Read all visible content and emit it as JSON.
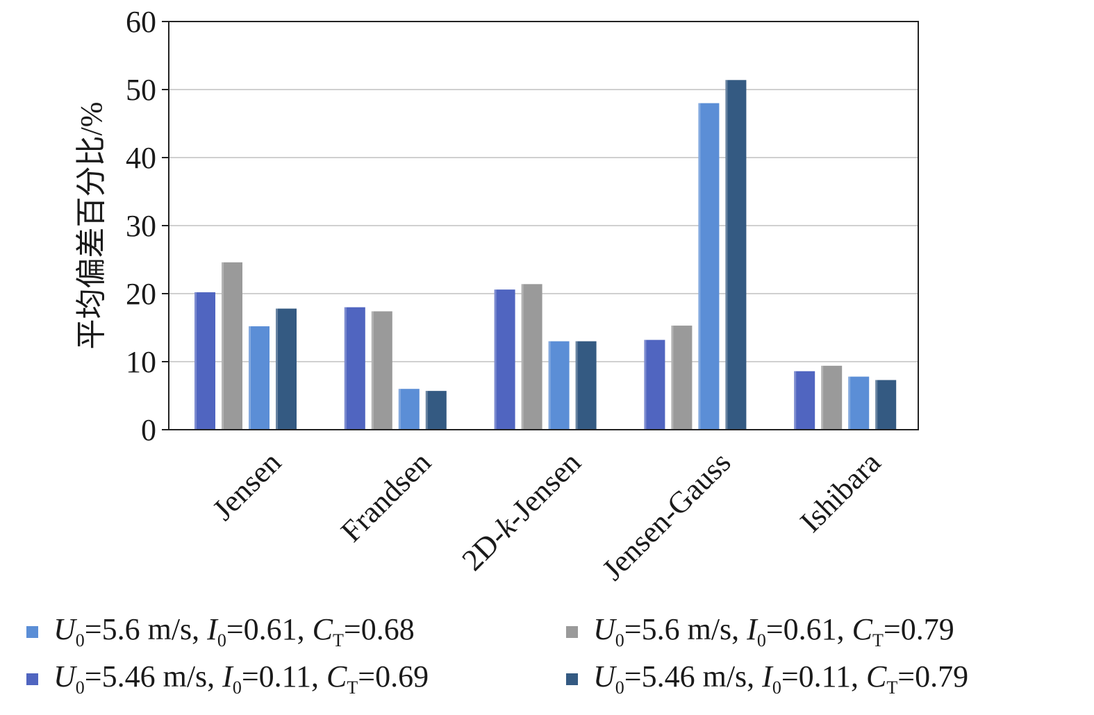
{
  "chart_data": {
    "type": "bar",
    "ylabel": "平均偏差百分比/%",
    "xlabel": "",
    "ylim": [
      0,
      60
    ],
    "yticks": [
      "0",
      "10",
      "20",
      "30",
      "40",
      "50",
      "60"
    ],
    "grid": true,
    "legend_position": "bottom",
    "categories": [
      "Jensen",
      "Frandsen",
      "2D-k-Jensen",
      "Jensen-Gauss",
      "Ishibara"
    ],
    "series": [
      {
        "name": "U0=5.46 m/s, I0=0.11, CT=0.69",
        "color": "#5065c0",
        "values": [
          20.2,
          18.0,
          20.6,
          13.2,
          8.6
        ]
      },
      {
        "name": "U0=5.6 m/s, I0=0.61, CT=0.79",
        "color": "#9a9a9a",
        "values": [
          24.6,
          17.4,
          21.4,
          15.3,
          9.4
        ]
      },
      {
        "name": "U0=5.6 m/s, I0=0.61, CT=0.68",
        "color": "#5b8ed6",
        "values": [
          15.2,
          6.0,
          13.0,
          48.0,
          7.8
        ]
      },
      {
        "name": "U0=5.46 m/s, I0=0.11, CT=0.79",
        "color": "#345a82",
        "values": [
          17.8,
          5.7,
          13.0,
          51.4,
          7.3
        ]
      }
    ],
    "legend": [
      {
        "sym": "U",
        "sub1": "0",
        "u": "=5.6 m/s, ",
        "isym": "I",
        "sub2": "0",
        "i": "=0.61, ",
        "csym": "C",
        "sub3": "T",
        "c": "=0.68",
        "color": "#5b8ed6"
      },
      {
        "sym": "U",
        "sub1": "0",
        "u": "=5.6 m/s, ",
        "isym": "I",
        "sub2": "0",
        "i": "=0.61, ",
        "csym": "C",
        "sub3": "T",
        "c": "=0.79",
        "color": "#9a9a9a"
      },
      {
        "sym": "U",
        "sub1": "0",
        "u": "=5.46 m/s, ",
        "isym": "I",
        "sub2": "0",
        "i": "=0.11, ",
        "csym": "C",
        "sub3": "T",
        "c": "=0.69",
        "color": "#5065c0"
      },
      {
        "sym": "U",
        "sub1": "0",
        "u": "=5.46 m/s, ",
        "isym": "I",
        "sub2": "0",
        "i": "=0.11, ",
        "csym": "C",
        "sub3": "T",
        "c": "=0.79",
        "color": "#345a82"
      }
    ]
  }
}
